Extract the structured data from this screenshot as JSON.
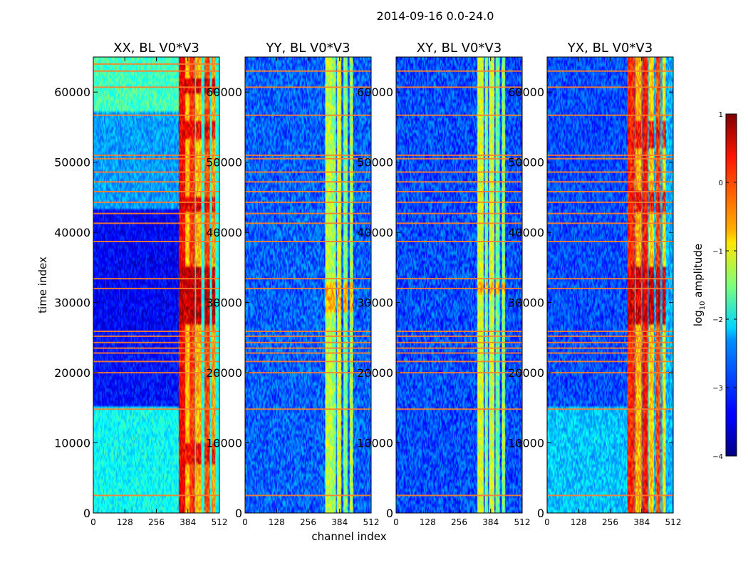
{
  "figure": {
    "suptitle": "2014-09-16 0.0-24.0"
  },
  "chart_data": {
    "type": "heatmap",
    "title": "2014-09-16 0.0-24.0",
    "xlabel": "channel index",
    "ylabel": "time index",
    "xlim": [
      0,
      512
    ],
    "ylim": [
      0,
      65000
    ],
    "x_ticks": [
      0,
      128,
      256,
      384,
      512
    ],
    "x_tick_labels": [
      "0",
      "128",
      "256",
      "384",
      "512"
    ],
    "y_ticks": [
      0,
      10000,
      20000,
      30000,
      40000,
      50000,
      60000
    ],
    "y_tick_labels": [
      "0",
      "10000",
      "20000",
      "30000",
      "40000",
      "50000",
      "60000"
    ],
    "colorbar": {
      "label_prefix": "log",
      "label_sub": "10",
      "label_suffix": " amplitude",
      "range": [
        -4,
        1
      ],
      "ticks": [
        -4,
        -3,
        -2,
        -1,
        0,
        1
      ],
      "tick_labels": [
        "−4",
        "−3",
        "−2",
        "−1",
        "0",
        "1"
      ],
      "colormap": "jet"
    },
    "panels": [
      {
        "title": "XX, BL V0*V3",
        "background": [
          {
            "y0": 0,
            "y1": 15000,
            "value": -2.1
          },
          {
            "y0": 15000,
            "y1": 26000,
            "value": -3.3
          },
          {
            "y0": 26000,
            "y1": 43500,
            "value": -3.4
          },
          {
            "y0": 43500,
            "y1": 57000,
            "value": -2.6
          },
          {
            "y0": 57000,
            "y1": 65000,
            "value": -1.8
          }
        ],
        "noise_level": 0.35,
        "left_level_span": [
          0,
          345
        ],
        "right_background": -2.0,
        "bright_channels": [
          {
            "x0": 345,
            "x1": 372,
            "value": 0.4
          },
          {
            "x0": 372,
            "x1": 390,
            "value": -0.6
          },
          {
            "x0": 392,
            "x1": 412,
            "value": 0.1
          },
          {
            "x0": 418,
            "x1": 440,
            "value": -0.5
          },
          {
            "x0": 452,
            "x1": 474,
            "value": 0.0
          },
          {
            "x0": 480,
            "x1": 495,
            "value": -0.4
          }
        ],
        "hot_blocks": [
          {
            "y0": 27000,
            "y1": 35000,
            "value": 0.9
          },
          {
            "y0": 7000,
            "y1": 10000,
            "value": 0.6
          },
          {
            "y0": 43000,
            "y1": 45000,
            "value": 0.7
          },
          {
            "y0": 53500,
            "y1": 56000,
            "value": 0.6
          },
          {
            "y0": 60000,
            "y1": 62000,
            "value": 0.8
          }
        ],
        "flag_rows": [
          2500,
          14800,
          20000,
          21600,
          22800,
          23500,
          24300,
          25200,
          25900,
          32000,
          33400,
          38700,
          41300,
          42700,
          44300,
          45800,
          47200,
          48600,
          50500,
          51000,
          56700,
          60700,
          63000,
          64000
        ]
      },
      {
        "title": "YY, BL V0*V3",
        "background": [
          {
            "y0": 0,
            "y1": 65000,
            "value": -2.9
          }
        ],
        "noise_level": 0.45,
        "left_level_span": [
          0,
          325
        ],
        "right_background": -2.9,
        "bright_channels": [
          {
            "x0": 325,
            "x1": 350,
            "value": -1.2
          },
          {
            "x0": 352,
            "x1": 368,
            "value": -1.4
          },
          {
            "x0": 372,
            "x1": 392,
            "value": -1.0
          },
          {
            "x0": 398,
            "x1": 415,
            "value": -1.5
          },
          {
            "x0": 425,
            "x1": 440,
            "value": -1.3
          }
        ],
        "hot_blocks": [
          {
            "y0": 28500,
            "y1": 33000,
            "value": -0.3
          }
        ],
        "flag_rows": [
          2500,
          14800,
          20000,
          21600,
          22800,
          23500,
          24300,
          25200,
          25900,
          32000,
          33400,
          38700,
          41300,
          42700,
          44300,
          45800,
          47200,
          48600,
          50500,
          51000,
          56700,
          60700,
          63000
        ]
      },
      {
        "title": "XY, BL V0*V3",
        "background": [
          {
            "y0": 0,
            "y1": 65000,
            "value": -3.0
          }
        ],
        "noise_level": 0.45,
        "left_level_span": [
          0,
          330
        ],
        "right_background": -3.0,
        "bright_channels": [
          {
            "x0": 330,
            "x1": 355,
            "value": -1.1
          },
          {
            "x0": 358,
            "x1": 372,
            "value": -1.5
          },
          {
            "x0": 378,
            "x1": 398,
            "value": -1.1
          },
          {
            "x0": 405,
            "x1": 420,
            "value": -1.6
          },
          {
            "x0": 428,
            "x1": 442,
            "value": -1.4
          }
        ],
        "hot_blocks": [
          {
            "y0": 31000,
            "y1": 33000,
            "value": -0.3
          }
        ],
        "flag_rows": [
          2500,
          14800,
          20000,
          21600,
          22800,
          23500,
          24300,
          25200,
          25900,
          32000,
          33400,
          38700,
          41300,
          42700,
          44300,
          45800,
          47200,
          48600,
          50500,
          51000,
          56700,
          60700,
          63000
        ]
      },
      {
        "title": "YX, BL V0*V3",
        "background": [
          {
            "y0": 0,
            "y1": 15000,
            "value": -2.4
          },
          {
            "y0": 15000,
            "y1": 65000,
            "value": -3.0
          }
        ],
        "noise_level": 0.4,
        "left_level_span": [
          0,
          325
        ],
        "right_background": -2.5,
        "bright_channels": [
          {
            "x0": 325,
            "x1": 355,
            "value": 0.2
          },
          {
            "x0": 360,
            "x1": 380,
            "value": -0.5
          },
          {
            "x0": 385,
            "x1": 408,
            "value": 0.3
          },
          {
            "x0": 414,
            "x1": 432,
            "value": -0.6
          },
          {
            "x0": 442,
            "x1": 462,
            "value": 0.0
          },
          {
            "x0": 470,
            "x1": 482,
            "value": -0.8
          }
        ],
        "hot_blocks": [
          {
            "y0": 27000,
            "y1": 35000,
            "value": 0.8
          },
          {
            "y0": 43000,
            "y1": 46000,
            "value": 0.5
          },
          {
            "y0": 52000,
            "y1": 56000,
            "value": 0.5
          }
        ],
        "flag_rows": [
          2500,
          14800,
          20000,
          21600,
          22800,
          23500,
          24300,
          25200,
          25900,
          32000,
          33400,
          38700,
          41300,
          42700,
          44300,
          45800,
          47200,
          48600,
          50500,
          51000,
          56700,
          60700,
          63000
        ]
      }
    ]
  }
}
